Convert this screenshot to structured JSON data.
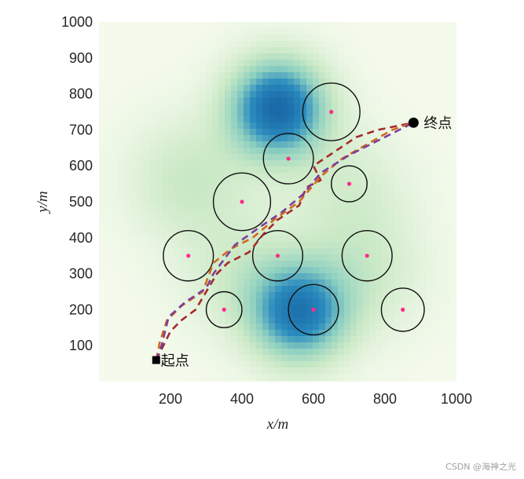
{
  "chart_data": {
    "type": "scatter",
    "xlabel": "x/m",
    "ylabel": "y/m",
    "xlim": [
      0,
      1000
    ],
    "ylim": [
      0,
      1000
    ],
    "x_ticks": [
      "200",
      "400",
      "600",
      "800",
      "1000"
    ],
    "y_ticks": [
      "100",
      "200",
      "300",
      "400",
      "500",
      "600",
      "700",
      "800",
      "900",
      "1000"
    ],
    "grid": false,
    "background": {
      "kind": "terrain-heatmap",
      "colors": [
        "#f4faec",
        "#cbe9c6",
        "#8ccfc0",
        "#2b8cbe",
        "#1a6aa8"
      ],
      "peaks": [
        {
          "x": 500,
          "y": 760,
          "value": 1.0
        },
        {
          "x": 560,
          "y": 190,
          "value": 0.85
        },
        {
          "x": 250,
          "y": 560,
          "value": 0.25
        },
        {
          "x": 400,
          "y": 300,
          "value": 0.2
        },
        {
          "x": 750,
          "y": 300,
          "value": 0.2
        },
        {
          "x": 700,
          "y": 530,
          "value": 0.18
        }
      ]
    },
    "obstacles": [
      {
        "cx": 650,
        "cy": 750,
        "r": 80
      },
      {
        "cx": 530,
        "cy": 620,
        "r": 70
      },
      {
        "cx": 700,
        "cy": 550,
        "r": 50
      },
      {
        "cx": 400,
        "cy": 500,
        "r": 80
      },
      {
        "cx": 250,
        "cy": 350,
        "r": 70
      },
      {
        "cx": 500,
        "cy": 350,
        "r": 70
      },
      {
        "cx": 750,
        "cy": 350,
        "r": 70
      },
      {
        "cx": 350,
        "cy": 200,
        "r": 50
      },
      {
        "cx": 600,
        "cy": 200,
        "r": 70
      },
      {
        "cx": 850,
        "cy": 200,
        "r": 60
      }
    ],
    "start": {
      "x": 160,
      "y": 60,
      "label": "起点"
    },
    "end": {
      "x": 880,
      "y": 720,
      "label": "终点"
    },
    "series": [
      {
        "color": "#a52a2a",
        "points": [
          [
            160,
            60
          ],
          [
            180,
            100
          ],
          [
            200,
            140
          ],
          [
            230,
            170
          ],
          [
            270,
            200
          ],
          [
            300,
            250
          ],
          [
            330,
            300
          ],
          [
            360,
            330
          ],
          [
            420,
            360
          ],
          [
            460,
            410
          ],
          [
            500,
            450
          ],
          [
            560,
            490
          ],
          [
            580,
            540
          ],
          [
            620,
            560
          ],
          [
            600,
            600
          ],
          [
            660,
            640
          ],
          [
            720,
            680
          ],
          [
            780,
            700
          ],
          [
            880,
            720
          ]
        ]
      },
      {
        "color": "#d2691e",
        "points": [
          [
            160,
            60
          ],
          [
            170,
            110
          ],
          [
            190,
            170
          ],
          [
            230,
            210
          ],
          [
            290,
            250
          ],
          [
            320,
            330
          ],
          [
            370,
            370
          ],
          [
            430,
            400
          ],
          [
            490,
            450
          ],
          [
            560,
            500
          ],
          [
            620,
            570
          ],
          [
            680,
            620
          ],
          [
            750,
            660
          ],
          [
            820,
            700
          ],
          [
            880,
            720
          ]
        ]
      },
      {
        "color": "#7b3fa0",
        "points": [
          [
            160,
            60
          ],
          [
            175,
            100
          ],
          [
            195,
            180
          ],
          [
            240,
            220
          ],
          [
            300,
            260
          ],
          [
            320,
            300
          ],
          [
            380,
            380
          ],
          [
            450,
            430
          ],
          [
            510,
            470
          ],
          [
            570,
            520
          ],
          [
            620,
            580
          ],
          [
            700,
            630
          ],
          [
            760,
            660
          ],
          [
            880,
            720
          ]
        ]
      }
    ]
  },
  "watermark": "CSDN @海神之光"
}
